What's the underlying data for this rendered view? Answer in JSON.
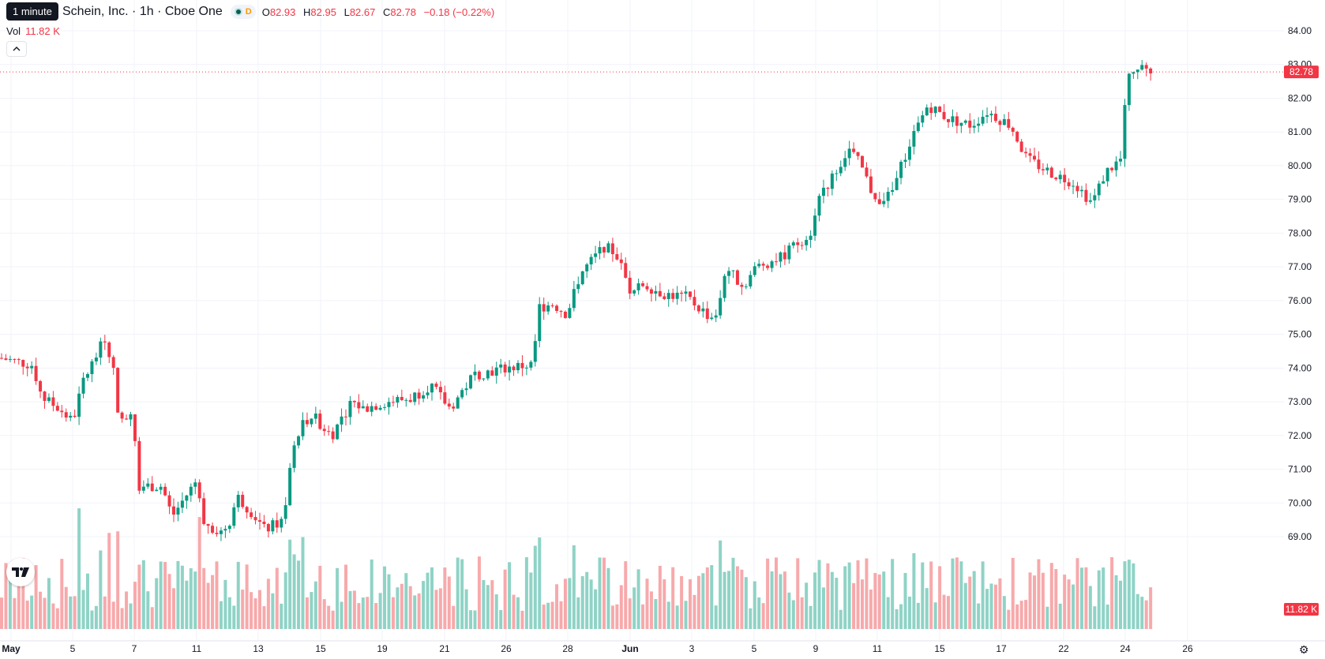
{
  "tooltip": "1 minute",
  "title": "Schein, Inc. · 1h · Cboe One",
  "status": {
    "d_label": "D"
  },
  "ohlc": {
    "o_label": "O",
    "o": "82.93",
    "h_label": "H",
    "h": "82.95",
    "l_label": "L",
    "l": "82.67",
    "c_label": "C",
    "c": "82.78",
    "change": "−0.18 (−0.22%)"
  },
  "volume": {
    "label": "Vol",
    "value": "11.82 K"
  },
  "icons": {
    "collapse": "chevron-up-icon",
    "logo": "tradingview-logo",
    "settings": "gear-icon"
  },
  "colors": {
    "up": "#089981",
    "down": "#f23645",
    "vol_up": "#8fd3c6",
    "vol_down": "#f7a9ab",
    "grid": "#f0f3fa"
  },
  "chart_data": {
    "type": "candlestick",
    "price_axis": [
      "84.00",
      "83.00",
      "82.00",
      "81.00",
      "80.00",
      "79.00",
      "78.00",
      "77.00",
      "76.00",
      "75.00",
      "74.00",
      "73.00",
      "72.00",
      "71.00",
      "70.00",
      "69.00"
    ],
    "ylim": [
      68.3,
      84.4
    ],
    "time_axis": [
      "May",
      "5",
      "7",
      "11",
      "13",
      "15",
      "19",
      "21",
      "26",
      "28",
      "Jun",
      "3",
      "5",
      "9",
      "11",
      "15",
      "17",
      "22",
      "24",
      "26"
    ],
    "last_price_label": "82.78",
    "volume_label": "11.82 K",
    "last_price": 82.78,
    "anchors": [
      [
        0,
        74.3
      ],
      [
        40,
        74.1
      ],
      [
        55,
        73.1
      ],
      [
        75,
        72.8
      ],
      [
        92,
        72.4
      ],
      [
        105,
        73.6
      ],
      [
        125,
        74.5
      ],
      [
        133,
        74.9
      ],
      [
        142,
        74.2
      ],
      [
        152,
        72.3
      ],
      [
        168,
        72.8
      ],
      [
        176,
        70.5
      ],
      [
        185,
        70.5
      ],
      [
        205,
        70.5
      ],
      [
        218,
        69.6
      ],
      [
        238,
        70.3
      ],
      [
        250,
        70.7
      ],
      [
        258,
        69.5
      ],
      [
        278,
        69.1
      ],
      [
        290,
        69.4
      ],
      [
        300,
        70.2
      ],
      [
        320,
        69.7
      ],
      [
        335,
        69.2
      ],
      [
        360,
        69.5
      ],
      [
        368,
        71.2
      ],
      [
        380,
        72.3
      ],
      [
        395,
        72.6
      ],
      [
        420,
        72.0
      ],
      [
        445,
        73.0
      ],
      [
        460,
        72.8
      ],
      [
        490,
        73.0
      ],
      [
        520,
        73.1
      ],
      [
        545,
        73.5
      ],
      [
        570,
        72.8
      ],
      [
        600,
        73.8
      ],
      [
        640,
        74.0
      ],
      [
        675,
        74.1
      ],
      [
        682,
        75.8
      ],
      [
        700,
        75.9
      ],
      [
        718,
        75.6
      ],
      [
        735,
        76.8
      ],
      [
        765,
        77.6
      ],
      [
        780,
        77.4
      ],
      [
        800,
        76.2
      ],
      [
        815,
        76.5
      ],
      [
        840,
        76.2
      ],
      [
        870,
        76.1
      ],
      [
        900,
        75.5
      ],
      [
        910,
        75.7
      ],
      [
        920,
        77.0
      ],
      [
        940,
        76.4
      ],
      [
        958,
        77.0
      ],
      [
        990,
        77.3
      ],
      [
        1030,
        78.1
      ],
      [
        1036,
        79.2
      ],
      [
        1050,
        79.5
      ],
      [
        1075,
        80.5
      ],
      [
        1090,
        80.0
      ],
      [
        1108,
        79.0
      ],
      [
        1128,
        79.1
      ],
      [
        1140,
        79.9
      ],
      [
        1155,
        80.8
      ],
      [
        1175,
        81.8
      ],
      [
        1200,
        81.4
      ],
      [
        1230,
        81.2
      ],
      [
        1250,
        81.6
      ],
      [
        1280,
        81.2
      ],
      [
        1300,
        80.2
      ],
      [
        1330,
        79.8
      ],
      [
        1360,
        79.5
      ],
      [
        1383,
        78.9
      ],
      [
        1400,
        79.8
      ],
      [
        1420,
        80.2
      ],
      [
        1428,
        82.8
      ],
      [
        1445,
        82.9
      ],
      [
        1462,
        82.78
      ]
    ],
    "volume_scale": [
      0,
      15000
    ]
  }
}
